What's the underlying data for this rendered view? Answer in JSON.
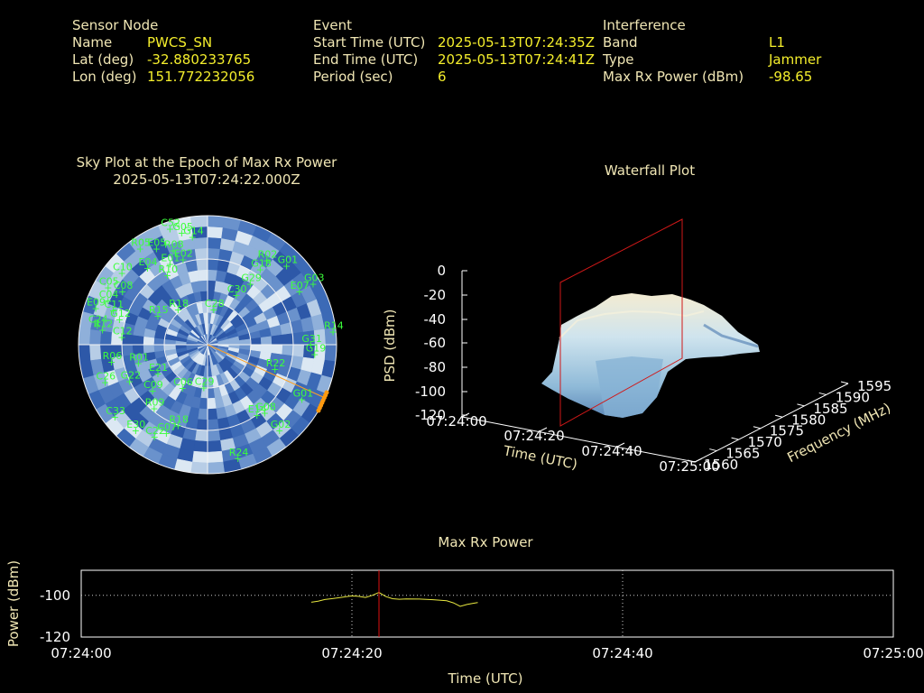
{
  "sensor": {
    "heading": "Sensor Node",
    "name_label": "Name",
    "name_value": "PWCS_SN",
    "lat_label": "Lat (deg)",
    "lat_value": "-32.880233765",
    "lon_label": "Lon (deg)",
    "lon_value": "151.772232056"
  },
  "event": {
    "heading": "Event",
    "start_label": "Start Time (UTC)",
    "start_value": "2025-05-13T07:24:35Z",
    "end_label": "End Time (UTC)",
    "end_value": "2025-05-13T07:24:41Z",
    "period_label": "Period (sec)",
    "period_value": "6"
  },
  "interference": {
    "heading": "Interference",
    "band_label": "Band",
    "band_value": "L1",
    "type_label": "Type",
    "type_value": "Jammer",
    "maxrx_label": "Max Rx Power (dBm)",
    "maxrx_value": "-98.65"
  },
  "skyplot": {
    "title": "Sky Plot at the Epoch of Max Rx Power",
    "subtitle": "2025-05-13T07:24:22.000Z",
    "satellites": [
      {
        "id": "C52",
        "az": -18,
        "el": 5
      },
      {
        "id": "G05",
        "az": -13,
        "el": 10
      },
      {
        "id": "G14",
        "az": -8,
        "el": 14
      },
      {
        "id": "R05",
        "az": -35,
        "el": 8
      },
      {
        "id": "E05",
        "az": -28,
        "el": 14
      },
      {
        "id": "R08",
        "az": -20,
        "el": 20
      },
      {
        "id": "E04",
        "az": -38,
        "el": 22
      },
      {
        "id": "C10",
        "az": -50,
        "el": 12
      },
      {
        "id": "C05",
        "az": -60,
        "el": 10
      },
      {
        "id": "C04",
        "az": -66,
        "el": 14
      },
      {
        "id": "C08",
        "az": -58,
        "el": 20
      },
      {
        "id": "E01",
        "az": -25,
        "el": 28
      },
      {
        "id": "R10",
        "az": -30,
        "el": 34
      },
      {
        "id": "E02",
        "az": -16,
        "el": 28
      },
      {
        "id": "E09",
        "az": -72,
        "el": 8
      },
      {
        "id": "C11",
        "az": -70,
        "el": 20
      },
      {
        "id": "G12",
        "az": -74,
        "el": 26
      },
      {
        "id": "R12",
        "az": -82,
        "el": 16
      },
      {
        "id": "C12",
        "az": -85,
        "el": 30
      },
      {
        "id": "R15",
        "az": -60,
        "el": 50
      },
      {
        "id": "C24",
        "az": -80,
        "el": 12
      },
      {
        "id": "C26",
        "az": -110,
        "el": 14
      },
      {
        "id": "R06",
        "az": -100,
        "el": 22
      },
      {
        "id": "C33",
        "az": -128,
        "el": 8
      },
      {
        "id": "E30",
        "az": -140,
        "el": 12
      },
      {
        "id": "C22",
        "az": -150,
        "el": 16
      },
      {
        "id": "C07",
        "az": -155,
        "el": 22
      },
      {
        "id": "R09",
        "az": -140,
        "el": 32
      },
      {
        "id": "C09",
        "az": -130,
        "el": 40
      },
      {
        "id": "R18",
        "az": -160,
        "el": 30
      },
      {
        "id": "C06",
        "az": -150,
        "el": 55
      },
      {
        "id": "C29",
        "az": -175,
        "el": 60
      },
      {
        "id": "C28",
        "az": 10,
        "el": 65
      },
      {
        "id": "R18b",
        "az": -40,
        "el": 58
      },
      {
        "id": "C30",
        "az": 30,
        "el": 50
      },
      {
        "id": "G29",
        "az": 35,
        "el": 38
      },
      {
        "id": "R02",
        "az": 35,
        "el": 18
      },
      {
        "id": "G18",
        "az": 35,
        "el": 26
      },
      {
        "id": "G01",
        "az": 45,
        "el": 12
      },
      {
        "id": "G03",
        "az": 60,
        "el": 5
      },
      {
        "id": "E07",
        "az": 60,
        "el": 16
      },
      {
        "id": "R14",
        "az": 84,
        "el": 2
      },
      {
        "id": "G31",
        "az": 90,
        "el": 18
      },
      {
        "id": "G19",
        "az": 95,
        "el": 15
      },
      {
        "id": "R22",
        "az": 110,
        "el": 40
      },
      {
        "id": "G01b",
        "az": 120,
        "el": 14
      },
      {
        "id": "E14",
        "az": 145,
        "el": 30
      },
      {
        "id": "G08",
        "az": 140,
        "el": 28
      },
      {
        "id": "G02",
        "az": 140,
        "el": 12
      },
      {
        "id": "R24",
        "az": 165,
        "el": 8
      },
      {
        "id": "R01",
        "az": -105,
        "el": 40
      },
      {
        "id": "E21",
        "az": -120,
        "el": 50
      },
      {
        "id": "G22",
        "az": -115,
        "el": 30
      }
    ],
    "jammer_az": 114
  },
  "waterfall": {
    "title": "Waterfall Plot",
    "zlabel": "PSD (dBm)",
    "xlabel": "Time (UTC)",
    "ylabel": "Frequency (MHz)",
    "z_ticks": [
      "0",
      "-20",
      "-40",
      "-60",
      "-80",
      "-100",
      "-120"
    ],
    "t_ticks": [
      "07:24:00",
      "07:24:20",
      "07:24:40",
      "07:25:00"
    ],
    "f_ticks": [
      "1560",
      "1565",
      "1570",
      "1575",
      "1580",
      "1585",
      "1590",
      "1595"
    ]
  },
  "maxrx": {
    "title": "Max Rx Power",
    "ylabel": "Power (dBm)",
    "xlabel": "Time (UTC)",
    "y_ticks": [
      "-100",
      "-120"
    ],
    "x_ticks": [
      "07:24:00",
      "07:24:20",
      "07:24:40",
      "07:25:00"
    ]
  },
  "chart_data": [
    {
      "type": "line",
      "title": "Max Rx Power",
      "xlabel": "Time (UTC)",
      "ylabel": "Power (dBm)",
      "xlim": [
        0,
        60
      ],
      "ylim": [
        -120,
        -88
      ],
      "x_unit": "seconds after 07:24:00",
      "series": [
        {
          "x": [
            17.0,
            17.5,
            18.0,
            18.5,
            19.0,
            19.5,
            20.0,
            20.5,
            21.0,
            21.5,
            22.0,
            22.5,
            23.0,
            23.5,
            24.0,
            25.0,
            26.0,
            27.0,
            27.5,
            28.0,
            28.5,
            29.0,
            29.3
          ],
          "y": [
            -103.3,
            -102.8,
            -102.0,
            -101.6,
            -101.2,
            -100.7,
            -100.3,
            -100.5,
            -101.0,
            -100.0,
            -98.65,
            -100.6,
            -101.6,
            -101.9,
            -101.7,
            -101.8,
            -102.1,
            -102.6,
            -103.6,
            -105.3,
            -104.4,
            -103.8,
            -103.5
          ]
        }
      ],
      "marker_x": 22
    }
  ]
}
